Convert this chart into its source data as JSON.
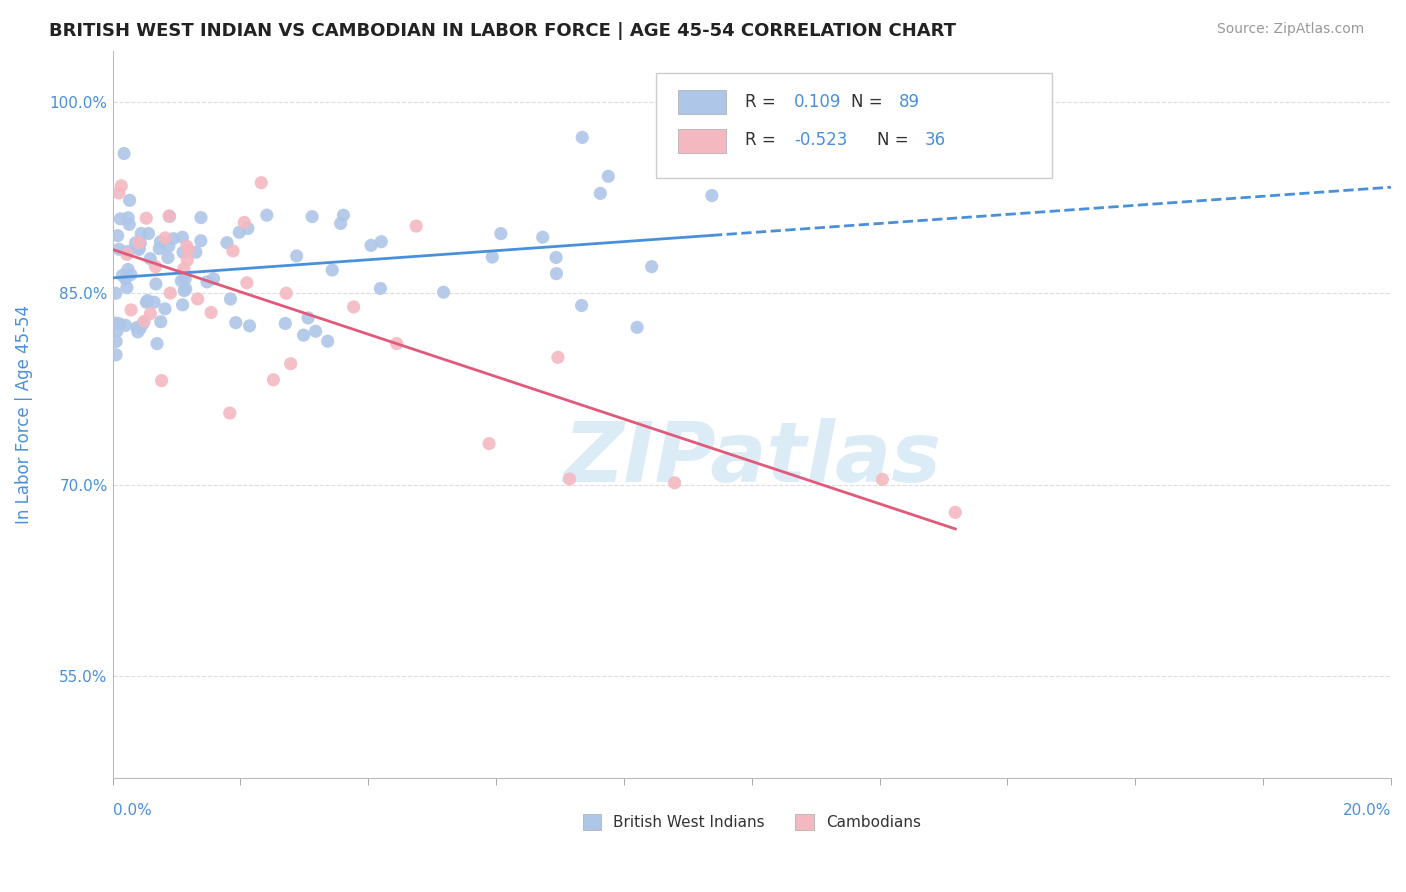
{
  "title": "BRITISH WEST INDIAN VS CAMBODIAN IN LABOR FORCE | AGE 45-54 CORRELATION CHART",
  "source": "Source: ZipAtlas.com",
  "ylabel": "In Labor Force | Age 45-54",
  "x_range": [
    0.0,
    20.0
  ],
  "y_range": [
    47.0,
    104.0
  ],
  "blue_R": 0.109,
  "blue_N": 89,
  "pink_R": -0.523,
  "pink_N": 36,
  "blue_color": "#aec6e8",
  "pink_color": "#f4b8c1",
  "blue_line_color": "#4a90d9",
  "pink_line_color": "#e05a7a",
  "legend_label_blue": "British West Indians",
  "legend_label_pink": "Cambodians",
  "background_color": "#ffffff",
  "grid_color": "#dddddd",
  "title_color": "#222222",
  "axis_label_color": "#4a90d9",
  "number_color": "#4a90d9",
  "watermark_color": "#cce5f5"
}
